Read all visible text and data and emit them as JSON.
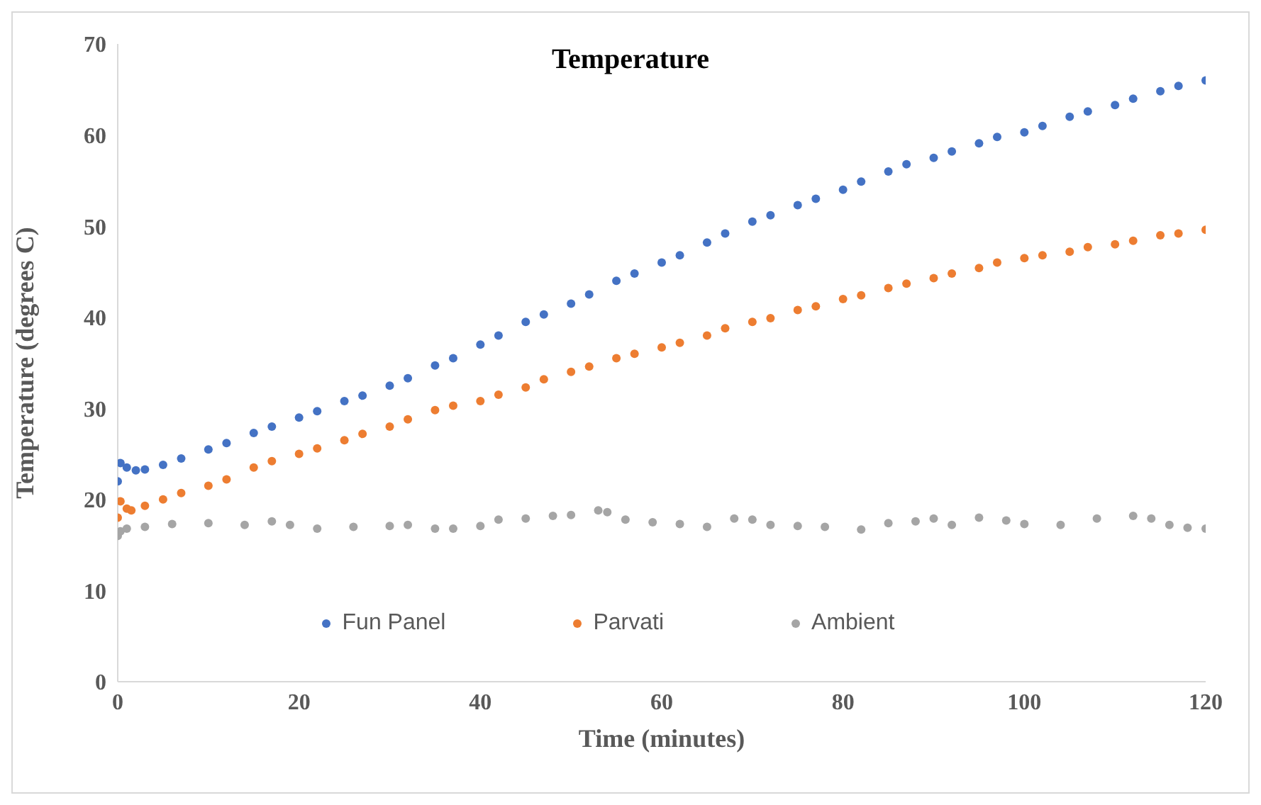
{
  "chart_data": {
    "type": "scatter",
    "title": "Temperature",
    "xlabel": "Time (minutes)",
    "ylabel": "Temperature (degrees C)",
    "xlim": [
      0,
      120
    ],
    "xticks": [
      0,
      20,
      40,
      60,
      80,
      100,
      120
    ],
    "ylim": [
      0,
      70
    ],
    "yticks": [
      0,
      10,
      20,
      30,
      40,
      50,
      60,
      70
    ],
    "grid": false,
    "legend": "bottom",
    "marker": "circle",
    "series": [
      {
        "name": "Fun Panel",
        "color": "#4472c4",
        "x": [
          0,
          0.3,
          1,
          2,
          3,
          5,
          7,
          10,
          12,
          15,
          17,
          20,
          22,
          25,
          27,
          30,
          32,
          35,
          37,
          40,
          42,
          45,
          47,
          50,
          52,
          55,
          57,
          60,
          62,
          65,
          67,
          70,
          72,
          75,
          77,
          80,
          82,
          85,
          87,
          90,
          92,
          95,
          97,
          100,
          102,
          105,
          107,
          110,
          112,
          115,
          117,
          120
        ],
        "values": [
          22,
          24,
          23.5,
          23.2,
          23.3,
          23.8,
          24.5,
          25.5,
          26.2,
          27.3,
          28,
          29,
          29.7,
          30.8,
          31.4,
          32.5,
          33.3,
          34.7,
          35.5,
          37,
          38,
          39.5,
          40.3,
          41.5,
          42.5,
          44,
          44.8,
          46,
          46.8,
          48.2,
          49.2,
          50.5,
          51.2,
          52.3,
          53,
          54,
          54.9,
          56,
          56.8,
          57.5,
          58.2,
          59.1,
          59.8,
          60.3,
          61,
          62,
          62.6,
          63.3,
          64,
          64.8,
          65.4,
          66
        ]
      },
      {
        "name": "Parvati",
        "color": "#ed7d31",
        "x": [
          0,
          0.3,
          1,
          1.5,
          3,
          5,
          7,
          10,
          12,
          15,
          17,
          20,
          22,
          25,
          27,
          30,
          32,
          35,
          37,
          40,
          42,
          45,
          47,
          50,
          52,
          55,
          57,
          60,
          62,
          65,
          67,
          70,
          72,
          75,
          77,
          80,
          82,
          85,
          87,
          90,
          92,
          95,
          97,
          100,
          102,
          105,
          107,
          110,
          112,
          115,
          117,
          120
        ],
        "values": [
          18,
          19.8,
          19,
          18.8,
          19.3,
          20,
          20.7,
          21.5,
          22.2,
          23.5,
          24.2,
          25,
          25.6,
          26.5,
          27.2,
          28,
          28.8,
          29.8,
          30.3,
          30.8,
          31.5,
          32.3,
          33.2,
          34,
          34.6,
          35.5,
          36,
          36.7,
          37.2,
          38,
          38.8,
          39.5,
          39.9,
          40.8,
          41.2,
          42,
          42.4,
          43.2,
          43.7,
          44.3,
          44.8,
          45.4,
          46,
          46.5,
          46.8,
          47.2,
          47.7,
          48,
          48.4,
          49,
          49.2,
          49.6
        ]
      },
      {
        "name": "Ambient",
        "color": "#a5a5a5",
        "x": [
          0,
          0.3,
          1,
          3,
          6,
          10,
          14,
          17,
          19,
          22,
          26,
          30,
          32,
          35,
          37,
          40,
          42,
          45,
          48,
          50,
          53,
          54,
          56,
          59,
          62,
          65,
          68,
          70,
          72,
          75,
          78,
          82,
          85,
          88,
          90,
          92,
          95,
          98,
          100,
          104,
          108,
          112,
          114,
          116,
          118,
          120
        ],
        "values": [
          16,
          16.5,
          16.8,
          17,
          17.3,
          17.4,
          17.2,
          17.6,
          17.2,
          16.8,
          17,
          17.1,
          17.2,
          16.8,
          16.8,
          17.1,
          17.8,
          17.9,
          18.2,
          18.3,
          18.8,
          18.6,
          17.8,
          17.5,
          17.3,
          17,
          17.9,
          17.8,
          17.2,
          17.1,
          17,
          16.7,
          17.4,
          17.6,
          17.9,
          17.2,
          18,
          17.7,
          17.3,
          17.2,
          17.9,
          18.2,
          17.9,
          17.2,
          16.9,
          16.8
        ]
      }
    ]
  }
}
